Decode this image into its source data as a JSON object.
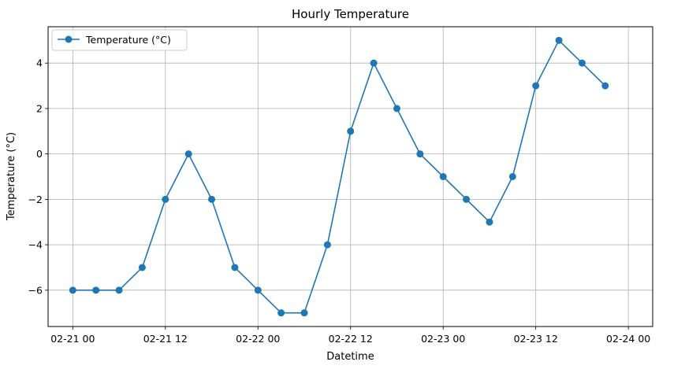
{
  "chart_data": {
    "type": "line",
    "title": "Hourly Temperature",
    "xlabel": "Datetime",
    "ylabel": "Temperature (°C)",
    "x_ticks": [
      "02-21 00",
      "02-21 12",
      "02-22 00",
      "02-22 12",
      "02-23 00",
      "02-23 12",
      "02-24 00"
    ],
    "y_ticks": [
      "−6",
      "−4",
      "−2",
      "0",
      "2",
      "4"
    ],
    "y_tick_values": [
      -6,
      -4,
      -2,
      0,
      2,
      4
    ],
    "ylim": [
      -7.6,
      5.6
    ],
    "xlim": [
      "2024-02-20 20:48",
      "2024-02-24 03:09"
    ],
    "grid": true,
    "legend_position": "top-left",
    "series": [
      {
        "name": "Temperature (°C)",
        "color": "#1f77b4",
        "marker": "circle",
        "x": [
          "2024-02-21 00:00",
          "2024-02-21 03:00",
          "2024-02-21 06:00",
          "2024-02-21 09:00",
          "2024-02-21 12:00",
          "2024-02-21 15:00",
          "2024-02-21 18:00",
          "2024-02-21 21:00",
          "2024-02-22 00:00",
          "2024-02-22 03:00",
          "2024-02-22 06:00",
          "2024-02-22 09:00",
          "2024-02-22 12:00",
          "2024-02-22 15:00",
          "2024-02-22 18:00",
          "2024-02-22 21:00",
          "2024-02-23 00:00",
          "2024-02-23 03:00",
          "2024-02-23 06:00",
          "2024-02-23 09:00",
          "2024-02-23 12:00",
          "2024-02-23 15:00",
          "2024-02-23 18:00",
          "2024-02-23 21:00"
        ],
        "values": [
          -6,
          -6,
          -6,
          -5,
          -2,
          0,
          -2,
          -5,
          -6,
          -7,
          -7,
          -4,
          1,
          4,
          2,
          0,
          -1,
          -2,
          -3,
          -1,
          3,
          5,
          4,
          3
        ]
      }
    ]
  }
}
